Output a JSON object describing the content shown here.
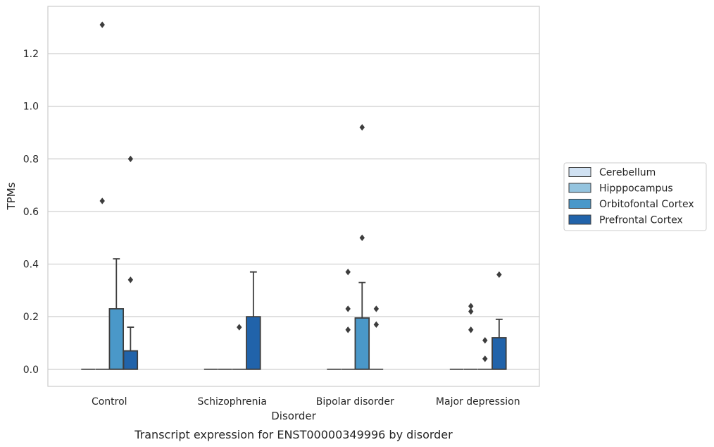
{
  "chart_data": {
    "type": "box",
    "caption": "Transcript expression for ENST00000349996 by disorder",
    "xlabel": "Disorder",
    "ylabel": "TPMs",
    "ylim": [
      -0.065,
      1.38
    ],
    "yticks": [
      {
        "value": 0.0,
        "label": "0.0"
      },
      {
        "value": 0.2,
        "label": "0.2"
      },
      {
        "value": 0.4,
        "label": "0.4"
      },
      {
        "value": 0.6,
        "label": "0.6"
      },
      {
        "value": 0.8,
        "label": "0.8"
      },
      {
        "value": 1.0,
        "label": "1.0"
      },
      {
        "value": 1.2,
        "label": "1.2"
      }
    ],
    "grid": "horizontal",
    "legend_position": "right",
    "categories": [
      "Control",
      "Schizophrenia",
      "Bipolar disorder",
      "Major depression"
    ],
    "series": [
      {
        "name": "Cerebellum",
        "color": "#d0e1f2",
        "boxes": [
          {
            "q1": 0,
            "median": 0,
            "q3": 0,
            "whisker_low": 0,
            "whisker_high": 0,
            "outliers": []
          },
          {
            "q1": 0,
            "median": 0,
            "q3": 0,
            "whisker_low": 0,
            "whisker_high": 0,
            "outliers": []
          },
          {
            "q1": 0,
            "median": 0,
            "q3": 0,
            "whisker_low": 0,
            "whisker_high": 0,
            "outliers": []
          },
          {
            "q1": 0,
            "median": 0,
            "q3": 0,
            "whisker_low": 0,
            "whisker_high": 0,
            "outliers": []
          }
        ]
      },
      {
        "name": "Hipppocampus",
        "color": "#94c4df",
        "boxes": [
          {
            "q1": 0,
            "median": 0,
            "q3": 0,
            "whisker_low": 0,
            "whisker_high": 0,
            "outliers": [
              1.31,
              0.64
            ]
          },
          {
            "q1": 0,
            "median": 0,
            "q3": 0,
            "whisker_low": 0,
            "whisker_high": 0,
            "outliers": []
          },
          {
            "q1": 0,
            "median": 0,
            "q3": 0,
            "whisker_low": 0,
            "whisker_high": 0,
            "outliers": [
              0.37,
              0.23,
              0.15
            ]
          },
          {
            "q1": 0,
            "median": 0,
            "q3": 0,
            "whisker_low": 0,
            "whisker_high": 0,
            "outliers": [
              0.24,
              0.22,
              0.15
            ]
          }
        ]
      },
      {
        "name": "Orbitofontal Cortex",
        "color": "#4a98c9",
        "boxes": [
          {
            "q1": 0,
            "median": 0,
            "q3": 0.23,
            "whisker_low": 0,
            "whisker_high": 0.42,
            "outliers": []
          },
          {
            "q1": 0,
            "median": 0,
            "q3": 0,
            "whisker_low": 0,
            "whisker_high": 0,
            "outliers": [
              0.16
            ]
          },
          {
            "q1": 0,
            "median": 0,
            "q3": 0.195,
            "whisker_low": 0,
            "whisker_high": 0.33,
            "outliers": [
              0.92,
              0.5
            ]
          },
          {
            "q1": 0,
            "median": 0,
            "q3": 0,
            "whisker_low": 0,
            "whisker_high": 0,
            "outliers": [
              0.11,
              0.04
            ]
          }
        ]
      },
      {
        "name": "Prefrontal Cortex",
        "color": "#2163aa",
        "boxes": [
          {
            "q1": 0,
            "median": 0,
            "q3": 0.07,
            "whisker_low": 0,
            "whisker_high": 0.16,
            "outliers": [
              0.8,
              0.34
            ]
          },
          {
            "q1": 0,
            "median": 0,
            "q3": 0.2,
            "whisker_low": 0,
            "whisker_high": 0.37,
            "outliers": []
          },
          {
            "q1": 0,
            "median": 0,
            "q3": 0,
            "whisker_low": 0,
            "whisker_high": 0,
            "outliers": [
              0.23,
              0.17
            ]
          },
          {
            "q1": 0,
            "median": 0,
            "q3": 0.12,
            "whisker_low": 0,
            "whisker_high": 0.19,
            "outliers": [
              0.36
            ]
          }
        ]
      }
    ]
  }
}
